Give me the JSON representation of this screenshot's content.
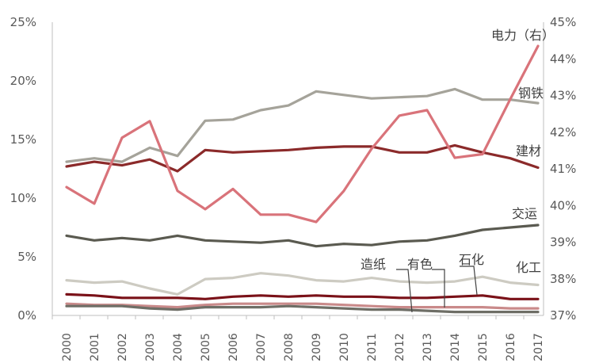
{
  "chart_data": {
    "type": "line",
    "x": [
      "2000",
      "2001",
      "2002",
      "2003",
      "2004",
      "2005",
      "2006",
      "2007",
      "2008",
      "2009",
      "2010",
      "2011",
      "2012",
      "2013",
      "2014",
      "2015",
      "2016",
      "2017"
    ],
    "left_axis": {
      "ylim": [
        0,
        25
      ],
      "ticks": [
        "0%",
        "5%",
        "10%",
        "15%",
        "20%",
        "25%"
      ]
    },
    "right_axis": {
      "ylim": [
        37,
        45
      ],
      "ticks": [
        "37%",
        "38%",
        "39%",
        "40%",
        "41%",
        "42%",
        "43%",
        "44%",
        "45%"
      ]
    },
    "grid": false,
    "legend": "inline labels",
    "series": [
      {
        "name": "钢铁",
        "axis": "left",
        "color": "#a5a39a",
        "values": [
          13.1,
          13.4,
          13.1,
          14.3,
          13.6,
          16.6,
          16.7,
          17.5,
          17.9,
          19.1,
          18.8,
          18.5,
          18.6,
          18.7,
          19.3,
          18.4,
          18.4,
          18.1
        ]
      },
      {
        "name": "建材",
        "axis": "left",
        "color": "#8b2a2a",
        "values": [
          12.7,
          13.1,
          12.8,
          13.3,
          12.3,
          14.1,
          13.9,
          14.0,
          14.1,
          14.3,
          14.4,
          14.4,
          13.9,
          13.9,
          14.5,
          13.9,
          13.4,
          12.6
        ]
      },
      {
        "name": "交运",
        "axis": "left",
        "color": "#5a5a50",
        "values": [
          6.8,
          6.4,
          6.6,
          6.4,
          6.8,
          6.4,
          6.3,
          6.2,
          6.4,
          5.9,
          6.1,
          6.0,
          6.3,
          6.4,
          6.8,
          7.3,
          7.5,
          7.7
        ]
      },
      {
        "name": "化工",
        "axis": "left",
        "color": "#cdcbc2",
        "values": [
          3.0,
          2.8,
          2.9,
          2.3,
          1.8,
          3.1,
          3.2,
          3.6,
          3.4,
          3.0,
          2.9,
          3.2,
          2.9,
          2.8,
          2.9,
          3.3,
          2.8,
          2.6
        ]
      },
      {
        "name": "石化",
        "axis": "left",
        "color": "#7a1118",
        "values": [
          1.8,
          1.7,
          1.5,
          1.5,
          1.5,
          1.4,
          1.6,
          1.7,
          1.6,
          1.7,
          1.6,
          1.6,
          1.5,
          1.5,
          1.6,
          1.7,
          1.4,
          1.4
        ]
      },
      {
        "name": "有色",
        "axis": "left",
        "color": "#c98a8a",
        "values": [
          1.0,
          0.9,
          0.9,
          0.8,
          0.7,
          0.9,
          1.0,
          1.0,
          1.0,
          1.0,
          0.9,
          0.8,
          0.7,
          0.7,
          0.7,
          0.7,
          0.6,
          0.6
        ]
      },
      {
        "name": "造纸",
        "axis": "left",
        "color": "#6e6e66",
        "values": [
          0.8,
          0.8,
          0.8,
          0.6,
          0.5,
          0.7,
          0.7,
          0.7,
          0.8,
          0.7,
          0.6,
          0.5,
          0.5,
          0.4,
          0.3,
          0.3,
          0.3,
          0.3
        ]
      },
      {
        "name": "电力（右）",
        "axis": "right",
        "color": "#d9737a",
        "values": [
          40.5,
          40.05,
          41.85,
          42.3,
          40.4,
          39.9,
          40.45,
          39.75,
          39.75,
          39.55,
          40.4,
          41.55,
          42.45,
          42.6,
          41.3,
          41.4,
          42.9,
          44.35
        ]
      }
    ]
  }
}
